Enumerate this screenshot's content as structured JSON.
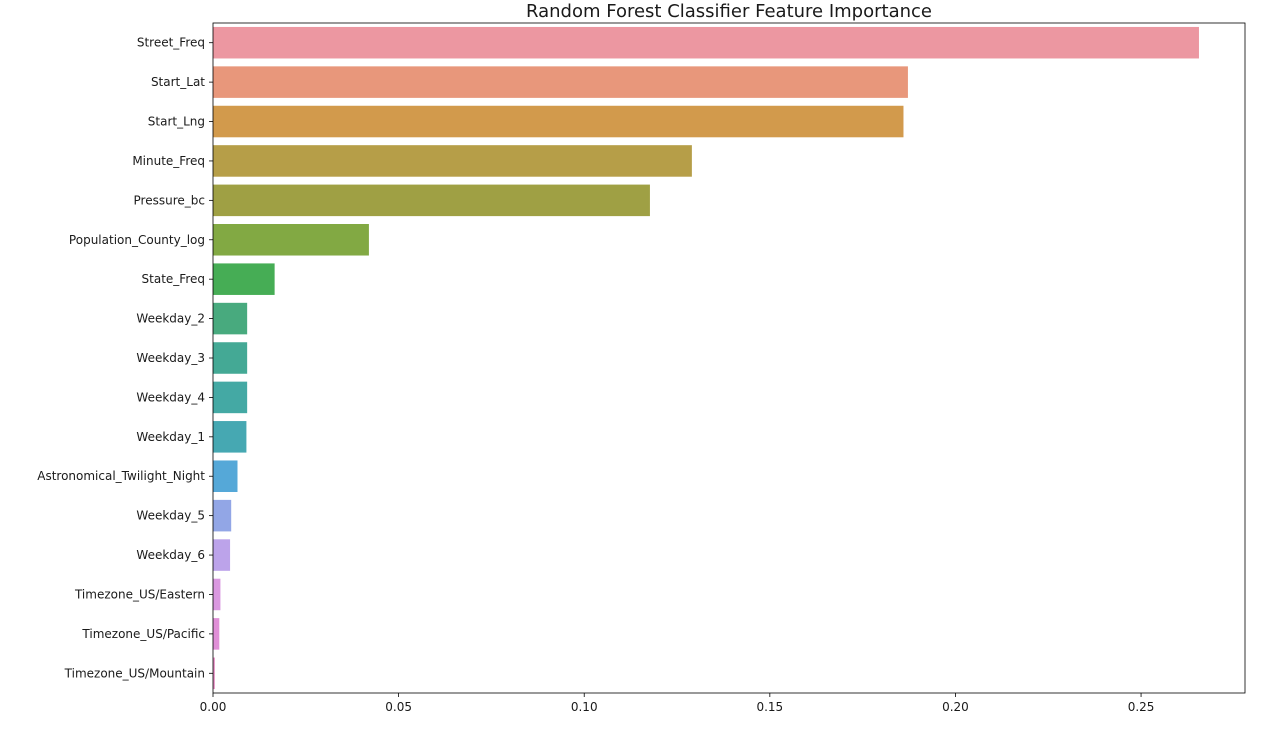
{
  "chart_data": {
    "type": "bar",
    "orientation": "horizontal",
    "title": "Random Forest Classifier Feature Importance",
    "xlabel": "",
    "ylabel": "",
    "xlim": [
      0,
      0.278
    ],
    "xticks": [
      0.0,
      0.05,
      0.1,
      0.15,
      0.2,
      0.25
    ],
    "xtick_labels": [
      "0.00",
      "0.05",
      "0.10",
      "0.15",
      "0.20",
      "0.25"
    ],
    "grid": false,
    "legend": "none",
    "categories": [
      "Street_Freq",
      "Start_Lat",
      "Start_Lng",
      "Minute_Freq",
      "Pressure_bc",
      "Population_County_log",
      "State_Freq",
      "Weekday_2",
      "Weekday_3",
      "Weekday_4",
      "Weekday_1",
      "Astronomical_Twilight_Night",
      "Weekday_5",
      "Weekday_6",
      "Timezone_US/Eastern",
      "Timezone_US/Pacific",
      "Timezone_US/Mountain"
    ],
    "values": [
      0.2656,
      0.1872,
      0.186,
      0.129,
      0.1177,
      0.042,
      0.0166,
      0.0092,
      0.0092,
      0.0092,
      0.009,
      0.0066,
      0.0049,
      0.0046,
      0.002,
      0.0017,
      0.0005
    ],
    "colors": [
      "#ec97a1",
      "#e8977b",
      "#d29a4c",
      "#b69e48",
      "#9fa044",
      "#82a943",
      "#46ad55",
      "#48aa7e",
      "#44a995",
      "#44a9a4",
      "#46a8b2",
      "#55a8d8",
      "#92a6e6",
      "#bca3ea",
      "#da98e0",
      "#e08fd7",
      "#e78fc5"
    ]
  }
}
